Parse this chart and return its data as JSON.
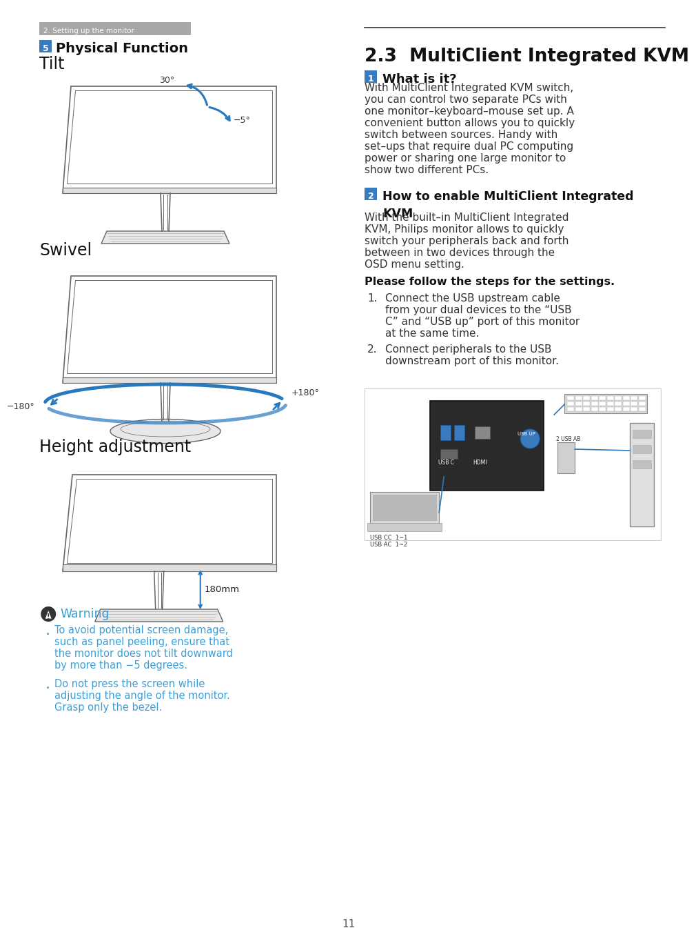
{
  "page_bg": "#ffffff",
  "section_header_bg": "#aaaaaa",
  "section_header_text": "2. Setting up the monitor",
  "number_badge_color": "#3a7abf",
  "physical_function_label": "Physical Function",
  "tilt_label": "Tilt",
  "swivel_label": "Swivel",
  "height_adj_label": "Height adjustment",
  "tilt_angle_pos": "30°",
  "tilt_angle_neg": "−5°",
  "swivel_angle_pos": "+180°",
  "swivel_angle_neg": "−180°",
  "height_mm": "180mm",
  "warning_title": "Warning",
  "warning_color": "#3a9fd8",
  "warning_icon_color": "#333333",
  "right_title": "2.3  MultiClient Integrated KVM",
  "badge1_body_lines": [
    "With MultiClient Integrated KVM switch,",
    "you can control two separate PCs with",
    "one monitor–keyboard–mouse set up. A",
    "convenient button allows you to quickly",
    "switch between sources. Handy with",
    "set–ups that require dual PC computing",
    "power or sharing one large monitor to",
    "show two different PCs."
  ],
  "badge2_body_lines": [
    "With the built–in MultiClient Integrated",
    "KVM, Philips monitor allows to quickly",
    "switch your peripherals back and forth",
    "between in two devices through the",
    "OSD menu setting."
  ],
  "steps_intro": "Please follow the steps for the settings.",
  "step1_lines": [
    "Connect the USB upstream cable",
    "from your dual devices to the “USB",
    "C” and “USB up” port of this monitor",
    "at the same time."
  ],
  "step2_lines": [
    "Connect peripherals to the USB",
    "downstream port of this monitor."
  ],
  "page_number": "11",
  "monitor_line_color": "#666666",
  "arrow_color": "#2878be",
  "warn_bullet1_lines": [
    "To avoid potential screen damage,",
    "such as panel peeling, ensure that",
    "the monitor does not tilt downward",
    "by more than −5 degrees."
  ],
  "warn_bullet2_lines": [
    "Do not press the screen while",
    "adjusting the angle of the monitor.",
    "Grasp only the bezel."
  ]
}
